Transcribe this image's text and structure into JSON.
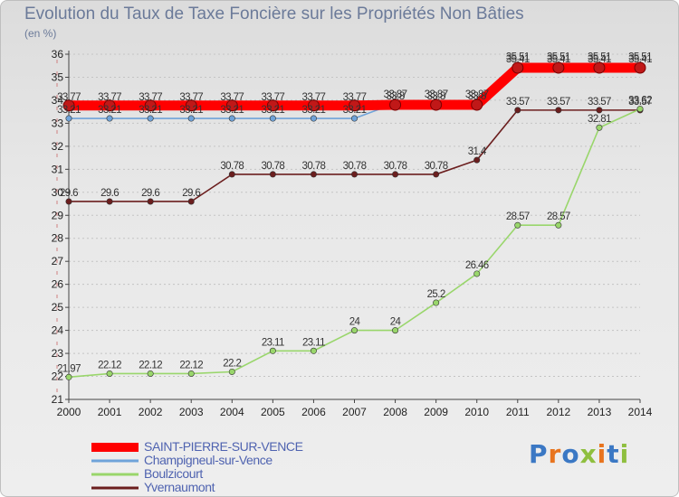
{
  "chart_data": {
    "type": "line",
    "title": "Evolution du Taux de Taxe Foncière sur les Propriétés Non Bâties",
    "ylabel": "(en %)",
    "xlabel": "",
    "ylim": [
      21,
      36
    ],
    "yticks": [
      "21",
      "22",
      "23",
      "24",
      "25",
      "26",
      "27",
      "28",
      "29",
      "30",
      "31",
      "32",
      "33",
      "34",
      "35",
      "36"
    ],
    "categories": [
      "2000",
      "2001",
      "2002",
      "2003",
      "2004",
      "2005",
      "2006",
      "2007",
      "2008",
      "2009",
      "2010",
      "2011",
      "2012",
      "2013",
      "2014"
    ],
    "series": [
      {
        "name": "Yvernaumont",
        "color": "#6b1e1e",
        "values": [
          29.6,
          29.6,
          29.6,
          29.6,
          30.78,
          30.78,
          30.78,
          30.78,
          30.78,
          30.78,
          31.4,
          33.57,
          33.57,
          33.57,
          33.57
        ],
        "labels": [
          "29.6",
          "29.6",
          "29.6",
          "29.6",
          "30.78",
          "30.78",
          "30.78",
          "30.78",
          "30.78",
          "30.78",
          "31.4",
          "33.57",
          "33.57",
          "33.57",
          "33.57"
        ]
      },
      {
        "name": "Boulzicourt",
        "color": "#99d66b",
        "values": [
          21.97,
          22.12,
          22.12,
          22.12,
          22.2,
          23.11,
          23.11,
          24,
          24,
          25.2,
          26.46,
          28.57,
          28.57,
          32.81,
          33.62
        ],
        "labels": [
          "21.97",
          "22.12",
          "22.12",
          "22.12",
          "22.2",
          "23.11",
          "23.11",
          "24",
          "24",
          "25.2",
          "26.46",
          "28.57",
          "28.57",
          "32.81",
          "33.62"
        ]
      },
      {
        "name": "Champigneul-sur-Vence",
        "color": "#6fa3d9",
        "values": [
          33.21,
          33.21,
          33.21,
          33.21,
          33.21,
          33.21,
          33.21,
          33.21,
          33.87,
          33.87,
          33.87,
          35.51,
          35.51,
          35.51,
          35.51
        ],
        "labels": [
          "33.21",
          "33.21",
          "33.21",
          "33.21",
          "33.21",
          "33.21",
          "33.21",
          "33.21",
          "33.87",
          "33.87",
          "33.87",
          "35.51",
          "35.51",
          "35.51",
          "35.51"
        ]
      },
      {
        "name": "SAINT-PIERRE-SUR-VENCE",
        "color": "#ff0000",
        "values": [
          33.77,
          33.77,
          33.77,
          33.77,
          33.77,
          33.77,
          33.77,
          33.77,
          33.8,
          33.8,
          33.8,
          35.41,
          35.41,
          35.41,
          35.41
        ],
        "labels": [
          "33.77",
          "33.77",
          "33.77",
          "33.77",
          "33.77",
          "33.77",
          "33.77",
          "33.77",
          "33.8",
          "33.8",
          "33.8",
          "35.41",
          "35.41",
          "35.41",
          "35.41"
        ]
      }
    ]
  },
  "legend": [
    {
      "name": "SAINT-PIERRE-SUR-VENCE",
      "color": "#ff0000"
    },
    {
      "name": "Champigneul-sur-Vence",
      "color": "#6fa3d9"
    },
    {
      "name": "Boulzicourt",
      "color": "#99d66b"
    },
    {
      "name": "Yvernaumont",
      "color": "#6b1e1e"
    }
  ],
  "logo": {
    "text": "Proxiti"
  }
}
